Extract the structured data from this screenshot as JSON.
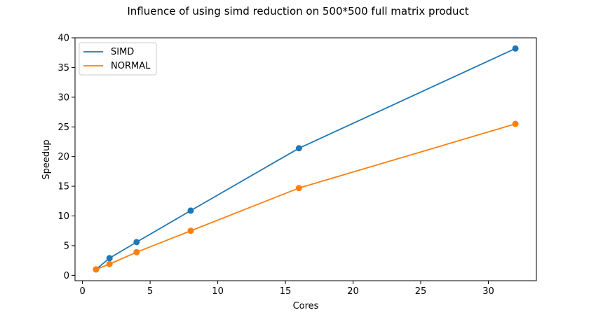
{
  "chart_data": {
    "type": "line",
    "title": "Influence of using simd reduction on 500*500 full matrix product",
    "xlabel": "Cores",
    "ylabel": "Speedup",
    "xlim": [
      -0.55,
      33.55
    ],
    "ylim": [
      -0.9,
      40
    ],
    "xticks": [
      0,
      5,
      10,
      15,
      20,
      25,
      30
    ],
    "yticks": [
      0,
      5,
      10,
      15,
      20,
      25,
      30,
      35,
      40
    ],
    "x": [
      1,
      2,
      4,
      8,
      16,
      32
    ],
    "series": [
      {
        "name": "SIMD",
        "color": "#1f77b4",
        "values": [
          1.0,
          2.9,
          5.6,
          10.9,
          21.4,
          38.2
        ]
      },
      {
        "name": "NORMAL",
        "color": "#ff7f0e",
        "values": [
          1.0,
          1.9,
          3.9,
          7.5,
          14.7,
          25.5
        ]
      }
    ],
    "grid": false,
    "legend_position": "top-left",
    "markers": "circle"
  }
}
